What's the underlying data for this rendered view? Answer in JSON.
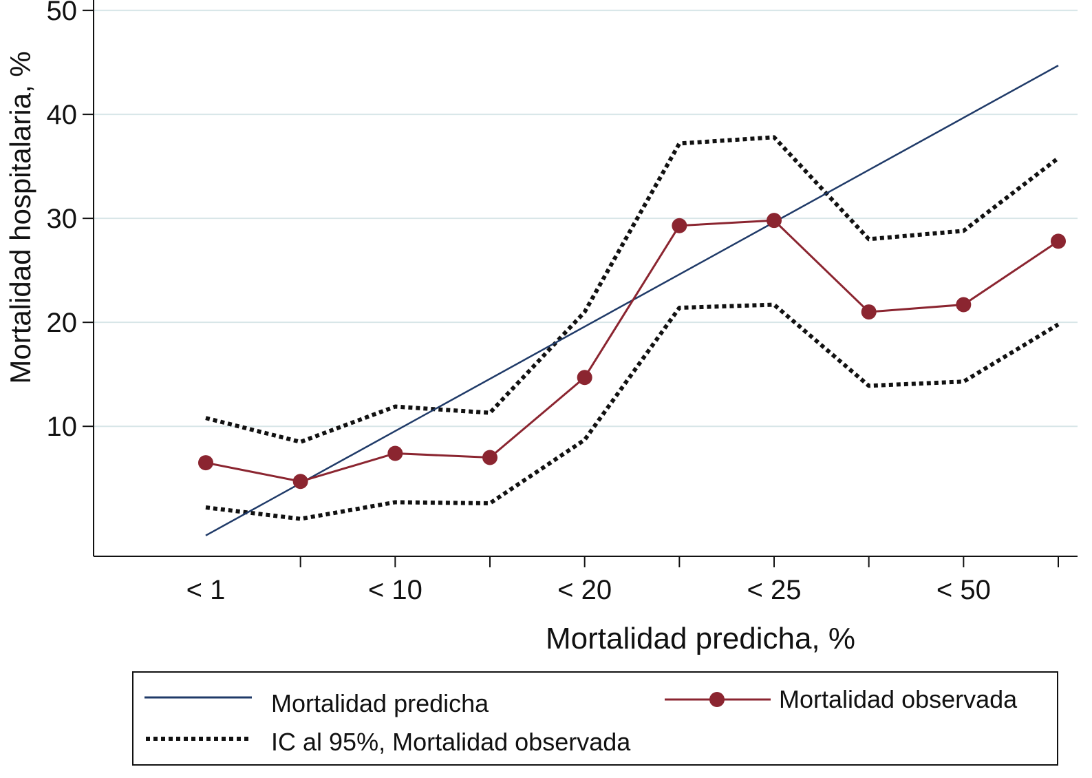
{
  "chart_data": {
    "type": "line",
    "xlabel": "Mortalidad predicha, %",
    "ylabel": "Mortalidad hospitalaria, %",
    "ylim": [
      -2.5,
      51
    ],
    "yticks": [
      10,
      20,
      30,
      40,
      50
    ],
    "y_grid": true,
    "x_positions": [
      1,
      2,
      3,
      4,
      5,
      6,
      7,
      8,
      9,
      10
    ],
    "x_tick_labels": [
      {
        "pos": 1,
        "label": "< 1"
      },
      {
        "pos": 3,
        "label": "< 10"
      },
      {
        "pos": 5,
        "label": "< 20"
      },
      {
        "pos": 7,
        "label": "< 25"
      },
      {
        "pos": 9,
        "label": "< 50"
      }
    ],
    "x_tick_marks": [
      2,
      3,
      4,
      5,
      6,
      7,
      8,
      9,
      10
    ],
    "series": [
      {
        "name": "Mortalidad predicha",
        "style": "solid",
        "color": "#1f3a68",
        "markers": false,
        "x": [
          1,
          10
        ],
        "values": [
          -0.5,
          44.7
        ]
      },
      {
        "name": "Mortalidad observada",
        "style": "solid",
        "color": "#8b2530",
        "markers": true,
        "values": [
          6.5,
          4.7,
          7.4,
          7.0,
          14.7,
          29.3,
          29.8,
          21.0,
          21.7,
          27.8
        ]
      },
      {
        "name": "IC al 95%, Mortalidad observada",
        "style": "dotted",
        "color": "#111111",
        "markers": false,
        "values": [
          10.8,
          8.5,
          11.9,
          11.3,
          21.0,
          37.2,
          37.8,
          28.0,
          28.8,
          35.8
        ]
      },
      {
        "name": "IC al 95%, Mortalidad observada",
        "style": "dotted",
        "color": "#111111",
        "markers": false,
        "values": [
          2.2,
          1.1,
          2.7,
          2.6,
          8.7,
          21.4,
          21.7,
          13.9,
          14.3,
          19.8
        ]
      }
    ],
    "legend": {
      "placement": "bottom",
      "entries": [
        "Mortalidad predicha",
        "Mortalidad observada",
        "IC al 95%, Mortalidad observada"
      ]
    }
  }
}
